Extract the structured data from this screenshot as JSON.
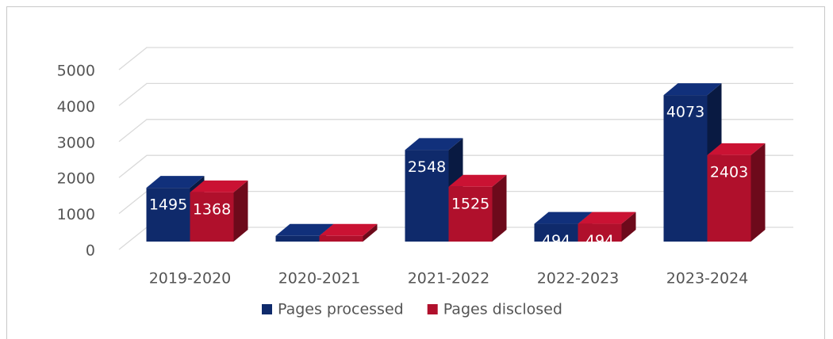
{
  "chart_data": {
    "type": "bar3d",
    "categories": [
      "2019-2020",
      "2020-2021",
      "2021-2022",
      "2022-2023",
      "2023-2024"
    ],
    "series": [
      {
        "name": "Pages processed",
        "color": "#0f2a6b",
        "values": [
          1495,
          159,
          2548,
          494,
          4073
        ]
      },
      {
        "name": "Pages disclosed",
        "color": "#b0102c",
        "values": [
          1368,
          159,
          1525,
          494,
          2403
        ]
      }
    ],
    "ylim": [
      0,
      5000
    ],
    "yticks": [
      0,
      1000,
      2000,
      3000,
      4000,
      5000
    ],
    "grid": true,
    "legend": "bottom"
  }
}
